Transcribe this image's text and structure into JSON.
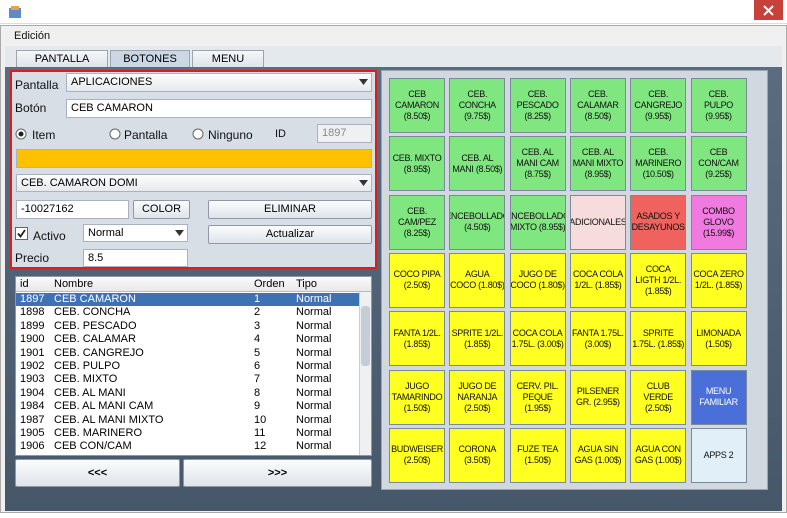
{
  "window": {
    "menu": "Edición",
    "tabs": [
      "PANTALLA",
      "BOTONES",
      "MENU"
    ]
  },
  "form": {
    "pantalla_label": "Pantalla",
    "pantalla": "APLICACIONES",
    "boton_label": "Botón",
    "boton": "CEB CAMARON",
    "radios": [
      "Item",
      "Pantalla",
      "Ninguno"
    ],
    "id_label": "ID",
    "id": "1897",
    "color_bar": "#ffc000",
    "pantalla_destino": "CEB. CAMARON DOMI",
    "color_code": "-10027162",
    "color_button": "COLOR",
    "eliminar": "ELIMINAR",
    "activo": "Activo",
    "tipo": "Normal",
    "actualizar": "Actualizar",
    "precio_label": "Precio",
    "precio": "8.5"
  },
  "table": {
    "columns": [
      "id",
      "Nombre",
      "Orden",
      "Tipo"
    ],
    "rows": [
      [
        "1897",
        "CEB CAMARON",
        "1",
        "Normal"
      ],
      [
        "1898",
        "CEB. CONCHA",
        "2",
        "Normal"
      ],
      [
        "1899",
        "CEB. PESCADO",
        "3",
        "Normal"
      ],
      [
        "1900",
        "CEB. CALAMAR",
        "4",
        "Normal"
      ],
      [
        "1901",
        "CEB. CANGREJO",
        "5",
        "Normal"
      ],
      [
        "1902",
        "CEB. PULPO",
        "6",
        "Normal"
      ],
      [
        "1903",
        "CEB. MIXTO",
        "7",
        "Normal"
      ],
      [
        "1904",
        "CEB. AL MANI",
        "8",
        "Normal"
      ],
      [
        "1984",
        "CEB. AL MANI CAM",
        "9",
        "Normal"
      ],
      [
        "1987",
        "CEB. AL MANI MIXTO",
        "10",
        "Normal"
      ],
      [
        "1905",
        "CEB. MARINERO",
        "11",
        "Normal"
      ],
      [
        "1906",
        "CEB CON/CAM",
        "12",
        "Normal"
      ]
    ]
  },
  "nav": [
    "<<<",
    ">>>"
  ],
  "buttons": [
    {
      "lines": [
        "CEB",
        "CAMARON",
        "(8.50$)"
      ],
      "color": "#80e680"
    },
    {
      "lines": [
        "CEB.",
        "CONCHA",
        "(9.75$)"
      ],
      "color": "#80e680"
    },
    {
      "lines": [
        "CEB.",
        "PESCADO",
        "(8.25$)"
      ],
      "color": "#80e680"
    },
    {
      "lines": [
        "CEB.",
        "CALAMAR",
        "(8.50$)"
      ],
      "color": "#80e680"
    },
    {
      "lines": [
        "CEB.",
        "CANGREJO",
        "(9.95$)"
      ],
      "color": "#80e680"
    },
    {
      "lines": [
        "CEB.",
        "PULPO",
        "(9.95$)"
      ],
      "color": "#80e680"
    },
    {
      "lines": [
        "CEB. MIXTO",
        "(8.95$)"
      ],
      "color": "#80e680"
    },
    {
      "lines": [
        "CEB. AL",
        "MANI (8.50$)"
      ],
      "color": "#80e680"
    },
    {
      "lines": [
        "CEB. AL",
        "MANI CAM",
        "(8.75$)"
      ],
      "color": "#80e680"
    },
    {
      "lines": [
        "CEB. AL",
        "MANI MIXTO",
        "(8.95$)"
      ],
      "color": "#80e680"
    },
    {
      "lines": [
        "CEB.",
        "MARINERO",
        "(10.50$)"
      ],
      "color": "#80e680"
    },
    {
      "lines": [
        "CEB",
        "CON/CAM",
        "(9.25$)"
      ],
      "color": "#80e680"
    },
    {
      "lines": [
        "CEB.",
        "CAM/PEZ",
        "(8.25$)"
      ],
      "color": "#80e680"
    },
    {
      "lines": [
        "ENCEBOLLADO",
        "(4.50$)"
      ],
      "color": "#80e680"
    },
    {
      "lines": [
        "ENCEBOLLADO",
        "MIXTO (8.95$)"
      ],
      "color": "#80e680"
    },
    {
      "lines": [
        "ADICIONALES"
      ],
      "color": "#f6dcdc"
    },
    {
      "lines": [
        "ASADOS Y",
        "DESAYUNOS"
      ],
      "color": "#f0625e"
    },
    {
      "lines": [
        "COMBO",
        "GLOVO",
        "(15.99$)"
      ],
      "color": "#f07ae0"
    },
    {
      "lines": [
        "COCO PIPA",
        "(2.50$)"
      ],
      "color": "#ffff22"
    },
    {
      "lines": [
        "AGUA",
        "COCO (1.80$)"
      ],
      "color": "#ffff22"
    },
    {
      "lines": [
        "JUGO DE",
        "COCO (1.80$)"
      ],
      "color": "#ffff22"
    },
    {
      "lines": [
        "COCA COLA",
        "1/2L. (1.85$)"
      ],
      "color": "#ffff22"
    },
    {
      "lines": [
        "COCA",
        "LIGTH 1/2L.",
        "(1.85$)"
      ],
      "color": "#ffff22"
    },
    {
      "lines": [
        "COCA ZERO",
        "1/2L. (1.85$)"
      ],
      "color": "#ffff22"
    },
    {
      "lines": [
        "FANTA 1/2L.",
        "(1.85$)"
      ],
      "color": "#ffff22"
    },
    {
      "lines": [
        "SPRITE 1/2L.",
        "(1.85$)"
      ],
      "color": "#ffff22"
    },
    {
      "lines": [
        "COCA COLA",
        "1.75L. (3.00$)"
      ],
      "color": "#ffff22"
    },
    {
      "lines": [
        "FANTA 1.75L.",
        "(3.00$)"
      ],
      "color": "#ffff22"
    },
    {
      "lines": [
        "SPRITE",
        "1.75L. (1.85$)"
      ],
      "color": "#ffff22"
    },
    {
      "lines": [
        "LIMONADA",
        "(1.50$)"
      ],
      "color": "#ffff22"
    },
    {
      "lines": [
        "JUGO",
        "TAMARINDO",
        "(1.50$)"
      ],
      "color": "#ffff22"
    },
    {
      "lines": [
        "JUGO DE",
        "NARANJA",
        "(2.50$)"
      ],
      "color": "#ffff22"
    },
    {
      "lines": [
        "CERV. PIL.",
        "PEQUE",
        "(1.95$)"
      ],
      "color": "#ffff22"
    },
    {
      "lines": [
        "PILSENER",
        "GR. (2.95$)"
      ],
      "color": "#ffff22"
    },
    {
      "lines": [
        "CLUB",
        "VERDE",
        "(2.50$)"
      ],
      "color": "#ffff22"
    },
    {
      "lines": [
        "MENU",
        "FAMILIAR"
      ],
      "color": "#4a6fd8"
    },
    {
      "lines": [
        "BUDWEISER",
        "(2.50$)"
      ],
      "color": "#ffff22"
    },
    {
      "lines": [
        "CORONA",
        "(3.50$)"
      ],
      "color": "#ffff22"
    },
    {
      "lines": [
        "FUZE TEA",
        "(1.50$)"
      ],
      "color": "#ffff22"
    },
    {
      "lines": [
        "AGUA SIN",
        "GAS (1.00$)"
      ],
      "color": "#ffff22"
    },
    {
      "lines": [
        "AGUA CON",
        "GAS (1.00$)"
      ],
      "color": "#ffff22"
    },
    {
      "lines": [
        "APPS 2"
      ],
      "color": "#e0eff8"
    }
  ]
}
